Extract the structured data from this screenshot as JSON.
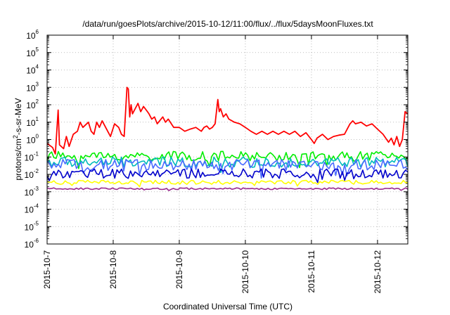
{
  "chart_data": {
    "type": "line",
    "title": "/data/run/goesPlots/archive/2015-10-12/11:00/flux/../flux/5daysMoonFluxes.txt",
    "xlabel": "Coordinated Universal Time (UTC)",
    "ylabel_parts": {
      "base": "protons/cm",
      "sup": "2",
      "rest": "-s-sr-MeV"
    },
    "yscale": "log",
    "ylim_exponents": [
      -6,
      6
    ],
    "ylim": [
      1e-06,
      1000000.0
    ],
    "yticks": [
      {
        "base": "10",
        "exp": "-6",
        "value": 1e-06
      },
      {
        "base": "10",
        "exp": "-5",
        "value": 1e-05
      },
      {
        "base": "10",
        "exp": "-4",
        "value": 0.0001
      },
      {
        "base": "10",
        "exp": "-3",
        "value": 0.001
      },
      {
        "base": "10",
        "exp": "-2",
        "value": 0.01
      },
      {
        "base": "10",
        "exp": "-1",
        "value": 0.1
      },
      {
        "base": "10",
        "exp": "0",
        "value": 1
      },
      {
        "base": "10",
        "exp": "1",
        "value": 10
      },
      {
        "base": "10",
        "exp": "2",
        "value": 100
      },
      {
        "base": "10",
        "exp": "3",
        "value": 1000
      },
      {
        "base": "10",
        "exp": "4",
        "value": 10000
      },
      {
        "base": "10",
        "exp": "5",
        "value": 100000
      },
      {
        "base": "10",
        "exp": "6",
        "value": 1000000
      }
    ],
    "xticks": [
      "2015-10-7",
      "2015-10-8",
      "2015-10-9",
      "2015-10-10",
      "2015-10-11",
      "2015-10-12"
    ],
    "xlim": [
      "2015-10-07 00:00",
      "2015-10-12 11:00"
    ],
    "grid": true,
    "grid_style": "dotted",
    "series": [
      {
        "color": "#ff0000",
        "values": [
          [
            "2015-10-07 00:00",
            0.6
          ],
          [
            "2015-10-07 02:00",
            0.35
          ],
          [
            "2015-10-07 03:00",
            0.15
          ],
          [
            "2015-10-07 04:00",
            50
          ],
          [
            "2015-10-07 04:30",
            0.5
          ],
          [
            "2015-10-07 06:00",
            0.3
          ],
          [
            "2015-10-07 07:00",
            1.5
          ],
          [
            "2015-10-07 08:00",
            0.4
          ],
          [
            "2015-10-07 09:30",
            2
          ],
          [
            "2015-10-07 11:00",
            3
          ],
          [
            "2015-10-07 12:00",
            10
          ],
          [
            "2015-10-07 13:00",
            5
          ],
          [
            "2015-10-07 15:00",
            10
          ],
          [
            "2015-10-07 16:00",
            3
          ],
          [
            "2015-10-07 17:00",
            2
          ],
          [
            "2015-10-07 18:00",
            10
          ],
          [
            "2015-10-07 19:00",
            5
          ],
          [
            "2015-10-07 20:00",
            12
          ],
          [
            "2015-10-07 21:00",
            6
          ],
          [
            "2015-10-07 23:00",
            1.5
          ],
          [
            "2015-10-08 00:30",
            8
          ],
          [
            "2015-10-08 02:00",
            5
          ],
          [
            "2015-10-08 03:00",
            2
          ],
          [
            "2015-10-08 04:00",
            1.5
          ],
          [
            "2015-10-08 05:00",
            1000
          ],
          [
            "2015-10-08 05:30",
            800
          ],
          [
            "2015-10-08 06:00",
            20
          ],
          [
            "2015-10-08 06:30",
            100
          ],
          [
            "2015-10-08 07:00",
            30
          ],
          [
            "2015-10-08 08:00",
            60
          ],
          [
            "2015-10-08 09:00",
            120
          ],
          [
            "2015-10-08 10:00",
            40
          ],
          [
            "2015-10-08 11:00",
            80
          ],
          [
            "2015-10-08 12:00",
            50
          ],
          [
            "2015-10-08 13:00",
            30
          ],
          [
            "2015-10-08 14:00",
            15
          ],
          [
            "2015-10-08 15:00",
            20
          ],
          [
            "2015-10-08 16:00",
            8
          ],
          [
            "2015-10-08 18:00",
            20
          ],
          [
            "2015-10-08 19:00",
            10
          ],
          [
            "2015-10-08 20:00",
            15
          ],
          [
            "2015-10-08 22:00",
            5
          ],
          [
            "2015-10-09 00:00",
            5
          ],
          [
            "2015-10-09 02:00",
            3
          ],
          [
            "2015-10-09 04:00",
            4
          ],
          [
            "2015-10-09 06:00",
            5
          ],
          [
            "2015-10-09 08:00",
            3
          ],
          [
            "2015-10-09 09:00",
            5
          ],
          [
            "2015-10-09 10:00",
            6
          ],
          [
            "2015-10-09 11:00",
            4
          ],
          [
            "2015-10-09 12:00",
            5
          ],
          [
            "2015-10-09 13:00",
            8
          ],
          [
            "2015-10-09 14:00",
            200
          ],
          [
            "2015-10-09 14:30",
            40
          ],
          [
            "2015-10-09 15:00",
            60
          ],
          [
            "2015-10-09 16:00",
            20
          ],
          [
            "2015-10-09 17:00",
            30
          ],
          [
            "2015-10-09 18:00",
            15
          ],
          [
            "2015-10-09 20:00",
            10
          ],
          [
            "2015-10-09 22:00",
            8
          ],
          [
            "2015-10-10 00:00",
            5
          ],
          [
            "2015-10-10 02:00",
            3
          ],
          [
            "2015-10-10 04:00",
            2
          ],
          [
            "2015-10-10 06:00",
            3
          ],
          [
            "2015-10-10 08:00",
            2
          ],
          [
            "2015-10-10 10:00",
            3
          ],
          [
            "2015-10-10 12:00",
            2
          ],
          [
            "2015-10-10 14:00",
            3
          ],
          [
            "2015-10-10 16:00",
            2
          ],
          [
            "2015-10-10 18:00",
            3
          ],
          [
            "2015-10-10 20:00",
            1.5
          ],
          [
            "2015-10-10 22:00",
            2.5
          ],
          [
            "2015-10-11 00:00",
            1
          ],
          [
            "2015-10-11 01:00",
            0.6
          ],
          [
            "2015-10-11 02:00",
            1.2
          ],
          [
            "2015-10-11 04:00",
            2
          ],
          [
            "2015-10-11 06:00",
            1
          ],
          [
            "2015-10-11 08:00",
            1.5
          ],
          [
            "2015-10-11 10:00",
            1.8
          ],
          [
            "2015-10-11 12:00",
            2
          ],
          [
            "2015-10-11 13:00",
            4
          ],
          [
            "2015-10-11 14:00",
            8
          ],
          [
            "2015-10-11 15:00",
            12
          ],
          [
            "2015-10-11 16:00",
            8
          ],
          [
            "2015-10-11 18:00",
            10
          ],
          [
            "2015-10-11 20:00",
            6
          ],
          [
            "2015-10-11 22:00",
            8
          ],
          [
            "2015-10-12 00:00",
            4
          ],
          [
            "2015-10-12 02:00",
            2
          ],
          [
            "2015-10-12 04:00",
            0.7
          ],
          [
            "2015-10-12 05:00",
            1.2
          ],
          [
            "2015-10-12 06:00",
            0.5
          ],
          [
            "2015-10-12 07:00",
            1.5
          ],
          [
            "2015-10-12 08:00",
            0.4
          ],
          [
            "2015-10-12 09:00",
            1
          ],
          [
            "2015-10-12 10:00",
            40
          ],
          [
            "2015-10-12 11:00",
            30
          ]
        ]
      },
      {
        "color": "#00ee00",
        "level": 0.11,
        "spread": 0.28
      },
      {
        "color": "#00bbbb",
        "level": 0.05,
        "spread": 0.3
      },
      {
        "color": "#4a6aff",
        "level": 0.035,
        "spread": 0.32
      },
      {
        "color": "#0000cc",
        "level": 0.011,
        "spread": 0.28
      },
      {
        "color": "#ffff00",
        "level": 0.0035,
        "spread": 0.12
      },
      {
        "color": "#9a2a8e",
        "level": 0.0015,
        "spread": 0.05
      }
    ]
  }
}
